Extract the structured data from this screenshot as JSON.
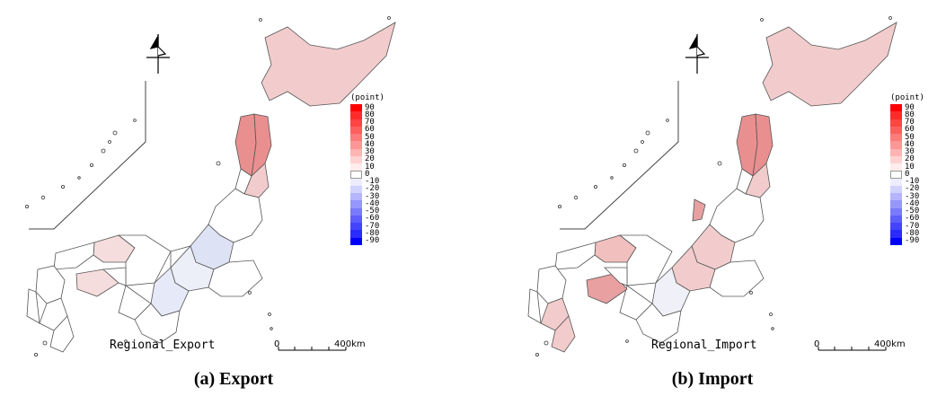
{
  "maps": [
    {
      "id": "export",
      "title": "Regional_Export",
      "caption": "(a) Export",
      "highlight": [
        "#f2cccc",
        "#e98f8f",
        "#e98f8f",
        "#f2cccc",
        "#f6dddd",
        "#f6dddd",
        "#e6e9f8",
        "#eceff8",
        "#dde2f5"
      ]
    },
    {
      "id": "import",
      "title": "Regional_Import",
      "caption": "(b) Import",
      "highlight": [
        "#f2cccc",
        "#e98f8f",
        "#e98f8f",
        "#f2cccc",
        "#f2bfbf",
        "#e8a0a0",
        "#f0f0f8",
        "#f2cccc",
        "#f2cccc"
      ]
    }
  ],
  "legend": {
    "unit": "(point)",
    "items": [
      {
        "label": "90",
        "color": "#ff0000"
      },
      {
        "label": "80",
        "color": "#ff2b2b"
      },
      {
        "label": "70",
        "color": "#ff4444"
      },
      {
        "label": "60",
        "color": "#ff5e5e"
      },
      {
        "label": "50",
        "color": "#ff7a7a"
      },
      {
        "label": "40",
        "color": "#ff9696"
      },
      {
        "label": "30",
        "color": "#ffb4b4"
      },
      {
        "label": "20",
        "color": "#ffd2d2"
      },
      {
        "label": "10",
        "color": "#ffeded"
      },
      {
        "label": "0",
        "color": "#ffffff"
      },
      {
        "label": "-10",
        "color": "#ededff"
      },
      {
        "label": "-20",
        "color": "#d2d2ff"
      },
      {
        "label": "-30",
        "color": "#b4b4ff"
      },
      {
        "label": "-40",
        "color": "#9696ff"
      },
      {
        "label": "-50",
        "color": "#7a7aff"
      },
      {
        "label": "-60",
        "color": "#5e5eff"
      },
      {
        "label": "-70",
        "color": "#4444ff"
      },
      {
        "label": "-80",
        "color": "#2b2bff"
      },
      {
        "label": "-90",
        "color": "#0000ff"
      }
    ]
  },
  "scale_bar": {
    "start": "0",
    "end": "400km"
  }
}
